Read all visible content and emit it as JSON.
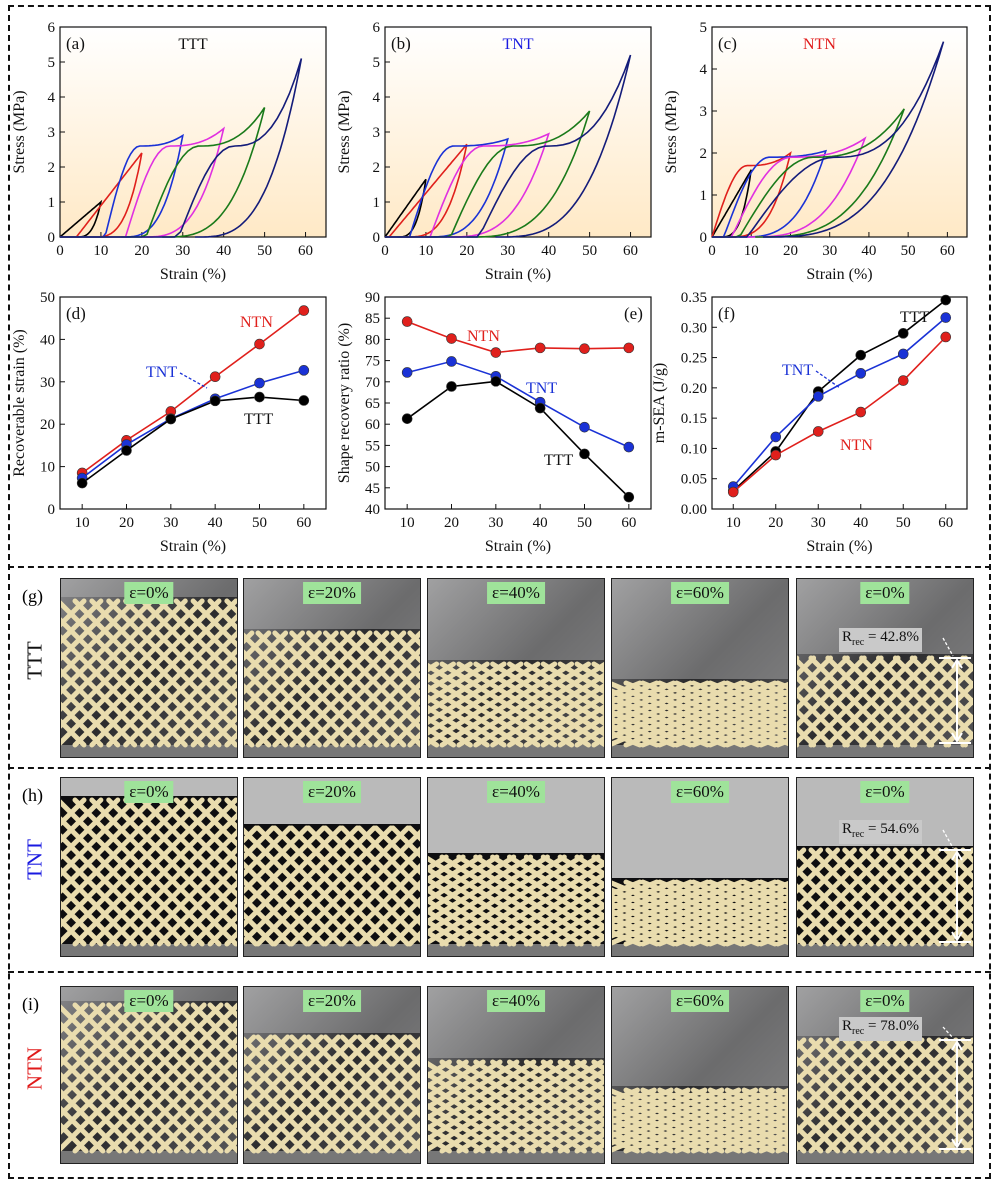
{
  "chart_data": [
    {
      "panel": "(a)",
      "type": "line",
      "title": "TTT",
      "title_color": "#111111",
      "xlabel": "Strain (%)",
      "ylabel": "Stress (MPa)",
      "xlim": [
        0,
        65
      ],
      "ylim": [
        0,
        6
      ],
      "xticks": [
        0,
        10,
        20,
        30,
        40,
        50,
        60
      ],
      "yticks": [
        0,
        1,
        2,
        3,
        4,
        5,
        6
      ],
      "series": [
        {
          "color": "#000000",
          "max_strain": 10,
          "peak": 1.0,
          "plateau": 0,
          "residual": 4
        },
        {
          "color": "#e0201c",
          "max_strain": 20,
          "peak": 2.4,
          "plateau": 0,
          "residual": 8
        },
        {
          "color": "#1a32d6",
          "max_strain": 30,
          "peak": 2.9,
          "plateau": 2.6,
          "residual": 15
        },
        {
          "color": "#e030e0",
          "max_strain": 40,
          "peak": 3.1,
          "plateau": 2.6,
          "residual": 20
        },
        {
          "color": "#1a7a1a",
          "max_strain": 50,
          "peak": 3.7,
          "plateau": 2.6,
          "residual": 25
        },
        {
          "color": "#141c7a",
          "max_strain": 59,
          "peak": 5.1,
          "plateau": 2.6,
          "residual": 33
        }
      ]
    },
    {
      "panel": "(b)",
      "type": "line",
      "title": "TNT",
      "title_color": "#1a1ae0",
      "xlabel": "Strain (%)",
      "ylabel": "Stress (MPa)",
      "xlim": [
        0,
        65
      ],
      "ylim": [
        0,
        6
      ],
      "xticks": [
        0,
        10,
        20,
        30,
        40,
        50,
        60
      ],
      "yticks": [
        0,
        1,
        2,
        3,
        4,
        5,
        6
      ],
      "series": [
        {
          "color": "#000000",
          "max_strain": 10,
          "peak": 1.65,
          "plateau": 0,
          "residual": 3
        },
        {
          "color": "#e0201c",
          "max_strain": 20,
          "peak": 2.65,
          "plateau": 0,
          "residual": 5
        },
        {
          "color": "#1a32d6",
          "max_strain": 30,
          "peak": 2.8,
          "plateau": 2.6,
          "residual": 10
        },
        {
          "color": "#e030e0",
          "max_strain": 40,
          "peak": 2.95,
          "plateau": 2.6,
          "residual": 15
        },
        {
          "color": "#1a7a1a",
          "max_strain": 50,
          "peak": 3.6,
          "plateau": 2.6,
          "residual": 20
        },
        {
          "color": "#141c7a",
          "max_strain": 60,
          "peak": 5.2,
          "plateau": 2.6,
          "residual": 27
        }
      ]
    },
    {
      "panel": "(c)",
      "type": "line",
      "title": "NTN",
      "title_color": "#e01a1a",
      "xlabel": "Strain (%)",
      "ylabel": "Stress (MPa)",
      "xlim": [
        0,
        65
      ],
      "ylim": [
        0,
        5
      ],
      "xticks": [
        0,
        10,
        20,
        30,
        40,
        50,
        60
      ],
      "yticks": [
        0,
        1,
        2,
        3,
        4,
        5
      ],
      "series": [
        {
          "color": "#000000",
          "max_strain": 10,
          "peak": 1.6,
          "plateau": 0,
          "residual": 2
        },
        {
          "color": "#e0201c",
          "max_strain": 20,
          "peak": 2.0,
          "plateau": 1.7,
          "residual": 4
        },
        {
          "color": "#1a32d6",
          "max_strain": 29,
          "peak": 2.05,
          "plateau": 1.9,
          "residual": 7
        },
        {
          "color": "#e030e0",
          "max_strain": 39,
          "peak": 2.35,
          "plateau": 1.9,
          "residual": 9
        },
        {
          "color": "#1a7a1a",
          "max_strain": 49,
          "peak": 3.05,
          "plateau": 1.9,
          "residual": 11
        },
        {
          "color": "#141c7a",
          "max_strain": 59,
          "peak": 4.65,
          "plateau": 1.9,
          "residual": 13
        }
      ]
    },
    {
      "panel": "(d)",
      "type": "line",
      "xlabel": "Strain (%)",
      "ylabel": "Recoverable strain (%)",
      "xlim": [
        5,
        65
      ],
      "ylim": [
        0,
        50
      ],
      "xticks": [
        10,
        20,
        30,
        40,
        50,
        60
      ],
      "yticks": [
        0,
        10,
        20,
        30,
        40,
        50
      ],
      "x": [
        10,
        20,
        30,
        40,
        50,
        60
      ],
      "series": [
        {
          "name": "NTN",
          "color": "#e0201c",
          "values": [
            8.5,
            16.2,
            23.0,
            31.2,
            38.9,
            46.8
          ]
        },
        {
          "name": "TNT",
          "color": "#1a32d6",
          "values": [
            7.3,
            15.2,
            21.3,
            26.0,
            29.7,
            32.7
          ]
        },
        {
          "name": "TTT",
          "color": "#000000",
          "values": [
            6.1,
            13.8,
            21.2,
            25.5,
            26.4,
            25.6
          ]
        }
      ],
      "annotations": [
        "NTN",
        "TNT",
        "TTT"
      ]
    },
    {
      "panel": "(e)",
      "type": "line",
      "xlabel": "Strain (%)",
      "ylabel": "Shape recovery ratio (%)",
      "xlim": [
        5,
        65
      ],
      "ylim": [
        40,
        90
      ],
      "xticks": [
        10,
        20,
        30,
        40,
        50,
        60
      ],
      "yticks": [
        40,
        45,
        50,
        55,
        60,
        65,
        70,
        75,
        80,
        85,
        90
      ],
      "x": [
        10,
        20,
        30,
        40,
        50,
        60
      ],
      "series": [
        {
          "name": "NTN",
          "color": "#e0201c",
          "values": [
            84.2,
            80.2,
            76.9,
            78.0,
            77.8,
            78.0
          ]
        },
        {
          "name": "TNT",
          "color": "#1a32d6",
          "values": [
            72.2,
            74.8,
            71.3,
            65.2,
            59.3,
            54.6
          ]
        },
        {
          "name": "TTT",
          "color": "#000000",
          "values": [
            61.3,
            68.9,
            70.1,
            63.8,
            53.0,
            42.8
          ]
        }
      ],
      "annotations": [
        "NTN",
        "TNT",
        "TTT"
      ]
    },
    {
      "panel": "(f)",
      "type": "line",
      "xlabel": "Strain (%)",
      "ylabel": "m-SEA (J/g)",
      "xlim": [
        5,
        65
      ],
      "ylim": [
        0,
        0.35
      ],
      "xticks": [
        10,
        20,
        30,
        40,
        50,
        60
      ],
      "yticks": [
        0.0,
        0.05,
        0.1,
        0.15,
        0.2,
        0.25,
        0.3,
        0.35
      ],
      "ytick_labels": [
        "0.00",
        "0.05",
        "0.10",
        "0.15",
        "0.20",
        "0.25",
        "0.30",
        "0.35"
      ],
      "x": [
        10,
        20,
        30,
        40,
        50,
        60
      ],
      "series": [
        {
          "name": "TTT",
          "color": "#000000",
          "values": [
            0.03,
            0.095,
            0.194,
            0.254,
            0.29,
            0.345
          ]
        },
        {
          "name": "TNT",
          "color": "#1a32d6",
          "values": [
            0.037,
            0.119,
            0.186,
            0.224,
            0.256,
            0.316
          ]
        },
        {
          "name": "NTN",
          "color": "#e0201c",
          "values": [
            0.028,
            0.089,
            0.128,
            0.16,
            0.212,
            0.284
          ]
        }
      ],
      "annotations": [
        "TTT",
        "TNT",
        "NTN"
      ]
    }
  ],
  "photo_rows": [
    {
      "letter": "(g)",
      "name": "TTT",
      "color": "#111111",
      "labels": [
        "ε=0%",
        "ε=20%",
        "ε=40%",
        "ε=60%",
        "ε=0%"
      ],
      "rec_prefix": "R",
      "rec_sub": "rec",
      "rec_value": " = 42.8%",
      "block_top": [
        0.12,
        0.3,
        0.47,
        0.58,
        0.44
      ]
    },
    {
      "letter": "(h)",
      "name": "TNT",
      "color": "#1a1ae0",
      "labels": [
        "ε=0%",
        "ε=20%",
        "ε=40%",
        "ε=60%",
        "ε=0%"
      ],
      "rec_prefix": "R",
      "rec_sub": "rec",
      "rec_value": " = 54.6%",
      "block_top": [
        0.12,
        0.28,
        0.44,
        0.58,
        0.4
      ]
    },
    {
      "letter": "(i)",
      "name": "NTN",
      "color": "#e01a1a",
      "labels": [
        "ε=0%",
        "ε=20%",
        "ε=40%",
        "ε=60%",
        "ε=0%"
      ],
      "rec_prefix": "R",
      "rec_sub": "rec",
      "rec_value": " = 78.0%",
      "block_top": [
        0.1,
        0.28,
        0.42,
        0.58,
        0.3
      ]
    }
  ],
  "colors": {
    "panel_bg_top": "#ffe9c6",
    "panel_bg_bottom": "#ffffff",
    "photo_label_bg": "#9fe39a"
  }
}
